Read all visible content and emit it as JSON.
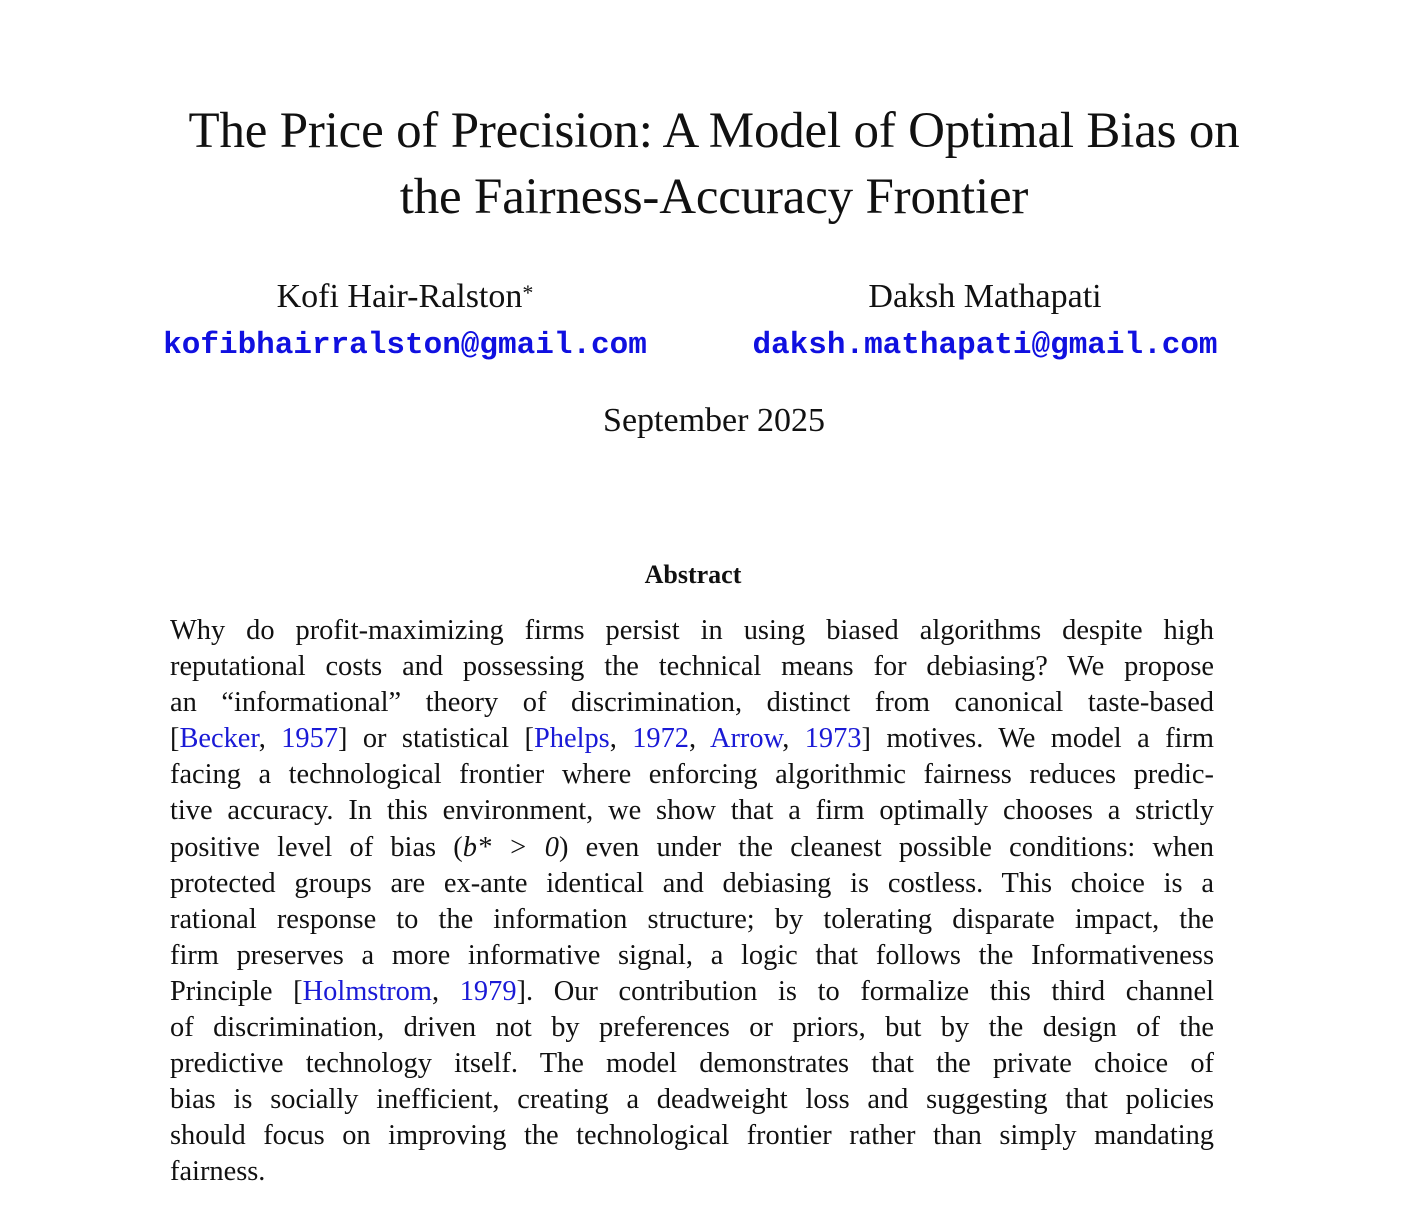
{
  "paper": {
    "title_line1": "The Price of Precision: A Model of Optimal Bias on",
    "title_line2": "the Fairness-Accuracy Frontier",
    "authors": [
      {
        "name": "Kofi Hair-Ralston",
        "mark": "*",
        "email": "kofibhairralston@gmail.com"
      },
      {
        "name": "Daksh Mathapati",
        "mark": "",
        "email": "daksh.mathapati@gmail.com"
      }
    ],
    "date": "September 2025",
    "abstract_heading": "Abstract",
    "abstract": {
      "l1": "Why do profit-maximizing firms persist in using biased algorithms despite high",
      "l2": "reputational costs and possessing the technical means for debiasing? We propose",
      "l3": "an “informational” theory of discrimination, distinct from canonical taste-based",
      "l4_open": "[",
      "l4_cite1_author": "Becker",
      "l4_sep1": ", ",
      "l4_cite1_year": "1957",
      "l4_mid": "] or statistical [",
      "l4_cite2_author": "Phelps",
      "l4_sep2": ", ",
      "l4_cite2_year": "1972",
      "l4_sep3": ", ",
      "l4_cite3_author": "Arrow",
      "l4_sep4": ", ",
      "l4_cite3_year": "1973",
      "l4_tail": "] motives. We model a firm",
      "l5": "facing a technological frontier where enforcing algorithmic fairness reduces predic-",
      "l6": "tive accuracy. In this environment, we show that a firm optimally chooses a strictly",
      "l7_head": "positive level of bias (",
      "l7_math": "b* > 0",
      "l7_tail": ") even under the cleanest possible conditions: when",
      "l8": "protected groups are ex-ante identical and debiasing is costless. This choice is a",
      "l9": "rational response to the information structure; by tolerating disparate impact, the",
      "l10": "firm preserves a more informative signal, a logic that follows the Informativeness",
      "l11_head": "Principle [",
      "l11_cite_author": "Holmstrom",
      "l11_sep": ", ",
      "l11_cite_year": "1979",
      "l11_tail": "]. Our contribution is to formalize this third channel",
      "l12": "of discrimination, driven not by preferences or priors, but by the design of the",
      "l13": "predictive technology itself. The model demonstrates that the private choice of",
      "l14": "bias is socially inefficient, creating a deadweight loss and suggesting that policies",
      "l15": "should focus on improving the technological frontier rather than simply mandating",
      "l16": "fairness."
    }
  }
}
